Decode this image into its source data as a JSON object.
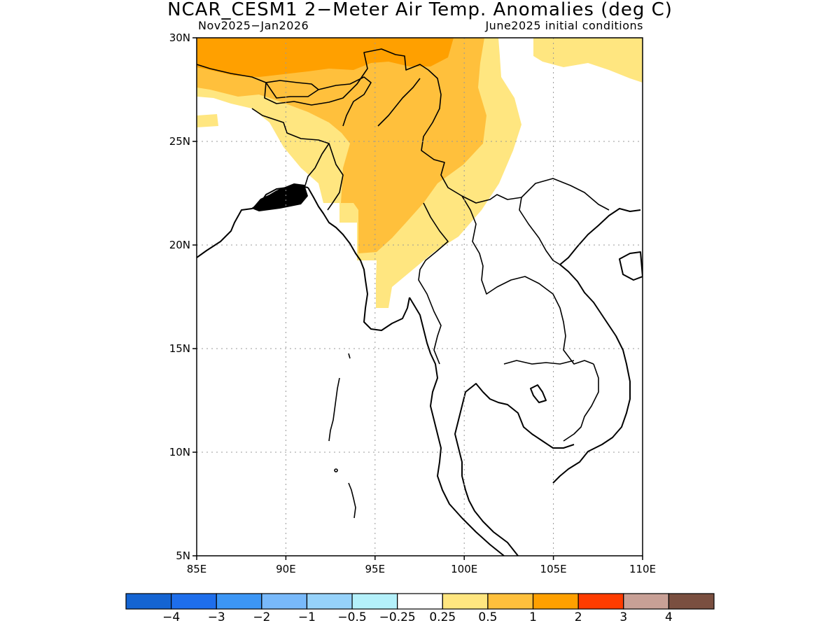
{
  "title": "NCAR_CESM1 2−Meter Air Temp. Anomalies (deg C)",
  "subtitle_left": "Nov2025−Jan2026",
  "subtitle_right": "June2025 initial conditions",
  "map": {
    "lon_range": [
      85,
      110
    ],
    "lat_range": [
      5,
      30
    ],
    "x_ticks": [
      "85E",
      "90E",
      "95E",
      "100E",
      "105E",
      "110E"
    ],
    "y_ticks": [
      "5N",
      "10N",
      "15N",
      "20N",
      "25N",
      "30N"
    ],
    "grid": true,
    "anomaly_regions": [
      {
        "level": "0.25–0.5",
        "color": "#ffe680",
        "area": "north Bangladesh/India, Myanmar, Yunnan, south-east China fringe"
      },
      {
        "level": "0.5–1",
        "color": "#ffc03c",
        "area": "north-east India, central Myanmar, Yunnan"
      },
      {
        "level": "1–2",
        "color": "#ffa000",
        "area": "Tibet / Himalaya northern edge"
      }
    ]
  },
  "colorbar": {
    "colors": [
      "#1464d2",
      "#1e6eeb",
      "#3c96f5",
      "#78b9fa",
      "#96d2fa",
      "#b4f0fa",
      "#ffffff",
      "#ffe680",
      "#ffc03c",
      "#ffa000",
      "#ff3c00",
      "#c8a096",
      "#7a4f40"
    ],
    "labels": [
      "−4",
      "−3",
      "−2",
      "−1",
      "−0.5",
      "−0.25",
      "0.25",
      "0.5",
      "1",
      "2",
      "3",
      "4"
    ]
  }
}
